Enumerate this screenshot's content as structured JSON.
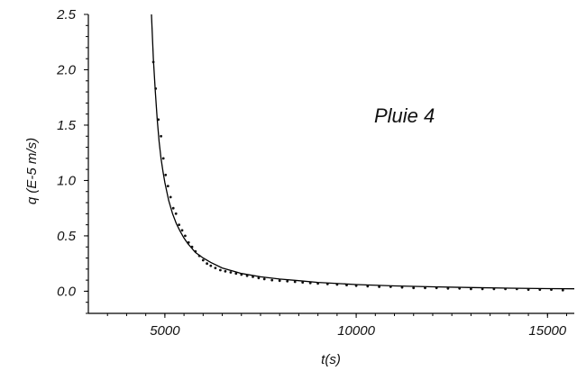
{
  "chart_data": {
    "type": "scatter",
    "title": "",
    "annotation": "Pluie 4",
    "xlabel": "t(s)",
    "ylabel": "q (E-5 m/s)",
    "xlim": [
      3000,
      15700
    ],
    "ylim": [
      -0.2,
      2.5
    ],
    "xticks": [
      5000,
      10000,
      15000
    ],
    "xtick_labels": [
      "5000",
      "10000",
      "15000"
    ],
    "yticks": [
      0.0,
      0.5,
      1.0,
      1.5,
      2.0,
      2.5
    ],
    "ytick_labels": [
      "0.0",
      "0.5",
      "1.0",
      "1.5",
      "2.0",
      "2.5"
    ],
    "grid": false,
    "series": [
      {
        "style": "line",
        "x": [
          4650,
          4700,
          4750,
          4800,
          4850,
          4900,
          4950,
          5000,
          5100,
          5200,
          5300,
          5400,
          5500,
          5600,
          5800,
          6000,
          6200,
          6500,
          6800,
          7000,
          7500,
          8000,
          8500,
          9000,
          10000,
          11000,
          12000,
          13000,
          14000,
          15000,
          15700
        ],
        "y": [
          2.5,
          2.1,
          1.8,
          1.55,
          1.35,
          1.2,
          1.08,
          0.98,
          0.82,
          0.7,
          0.61,
          0.54,
          0.48,
          0.43,
          0.35,
          0.3,
          0.26,
          0.21,
          0.18,
          0.16,
          0.13,
          0.11,
          0.095,
          0.08,
          0.06,
          0.048,
          0.04,
          0.033,
          0.028,
          0.024,
          0.022
        ]
      },
      {
        "style": "points",
        "x": [
          4700,
          4760,
          4830,
          4900,
          4960,
          5020,
          5080,
          5150,
          5220,
          5290,
          5370,
          5450,
          5530,
          5620,
          5710,
          5800,
          5900,
          6000,
          6100,
          6200,
          6320,
          6450,
          6580,
          6720,
          6860,
          7000,
          7150,
          7300,
          7450,
          7600,
          7800,
          8000,
          8200,
          8400,
          8600,
          8800,
          9000,
          9250,
          9500,
          9750,
          10000,
          10300,
          10600,
          10900,
          11200,
          11500,
          11800,
          12100,
          12400,
          12700,
          13000,
          13300,
          13600,
          13900,
          14200,
          14500,
          14800,
          15100,
          15400
        ],
        "y": [
          2.07,
          1.83,
          1.55,
          1.4,
          1.2,
          1.05,
          0.95,
          0.85,
          0.75,
          0.7,
          0.6,
          0.55,
          0.5,
          0.44,
          0.4,
          0.36,
          0.32,
          0.28,
          0.25,
          0.23,
          0.21,
          0.19,
          0.18,
          0.17,
          0.16,
          0.15,
          0.14,
          0.13,
          0.12,
          0.11,
          0.1,
          0.095,
          0.09,
          0.085,
          0.08,
          0.075,
          0.07,
          0.065,
          0.06,
          0.055,
          0.05,
          0.045,
          0.04,
          0.04,
          0.035,
          0.03,
          0.03,
          0.03,
          0.025,
          0.025,
          0.02,
          0.02,
          0.02,
          0.02,
          0.02,
          0.015,
          0.015,
          0.015,
          0.01
        ]
      }
    ]
  }
}
